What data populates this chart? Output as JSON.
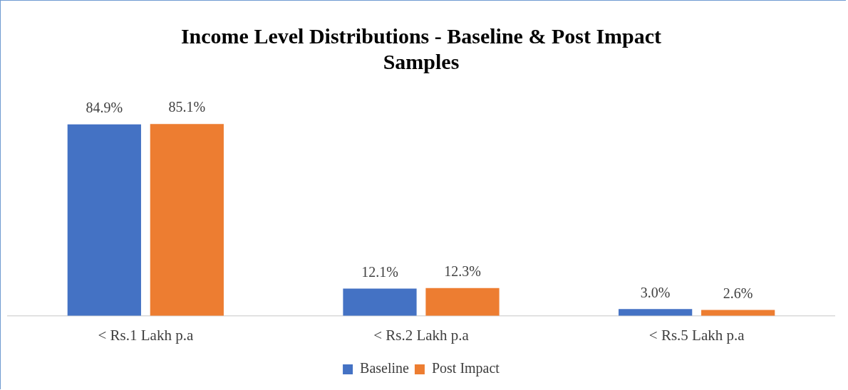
{
  "chart_data": {
    "type": "bar",
    "title": "Income Level Distributions - Baseline & Post Impact Samples",
    "categories": [
      "< Rs.1 Lakh p.a",
      "< Rs.2 Lakh p.a",
      "< Rs.5 Lakh p.a"
    ],
    "series": [
      {
        "name": "Baseline",
        "color": "#4472c4",
        "values": [
          84.9,
          12.1,
          3.0
        ],
        "value_labels": [
          "84.9%",
          "12.1%",
          "3.0%"
        ]
      },
      {
        "name": "Post Impact",
        "color": "#ed7d31",
        "values": [
          85.1,
          12.3,
          2.6
        ],
        "value_labels": [
          "85.1%",
          "12.3%",
          "2.6%"
        ]
      }
    ],
    "legend": "bottom",
    "grid": false
  }
}
